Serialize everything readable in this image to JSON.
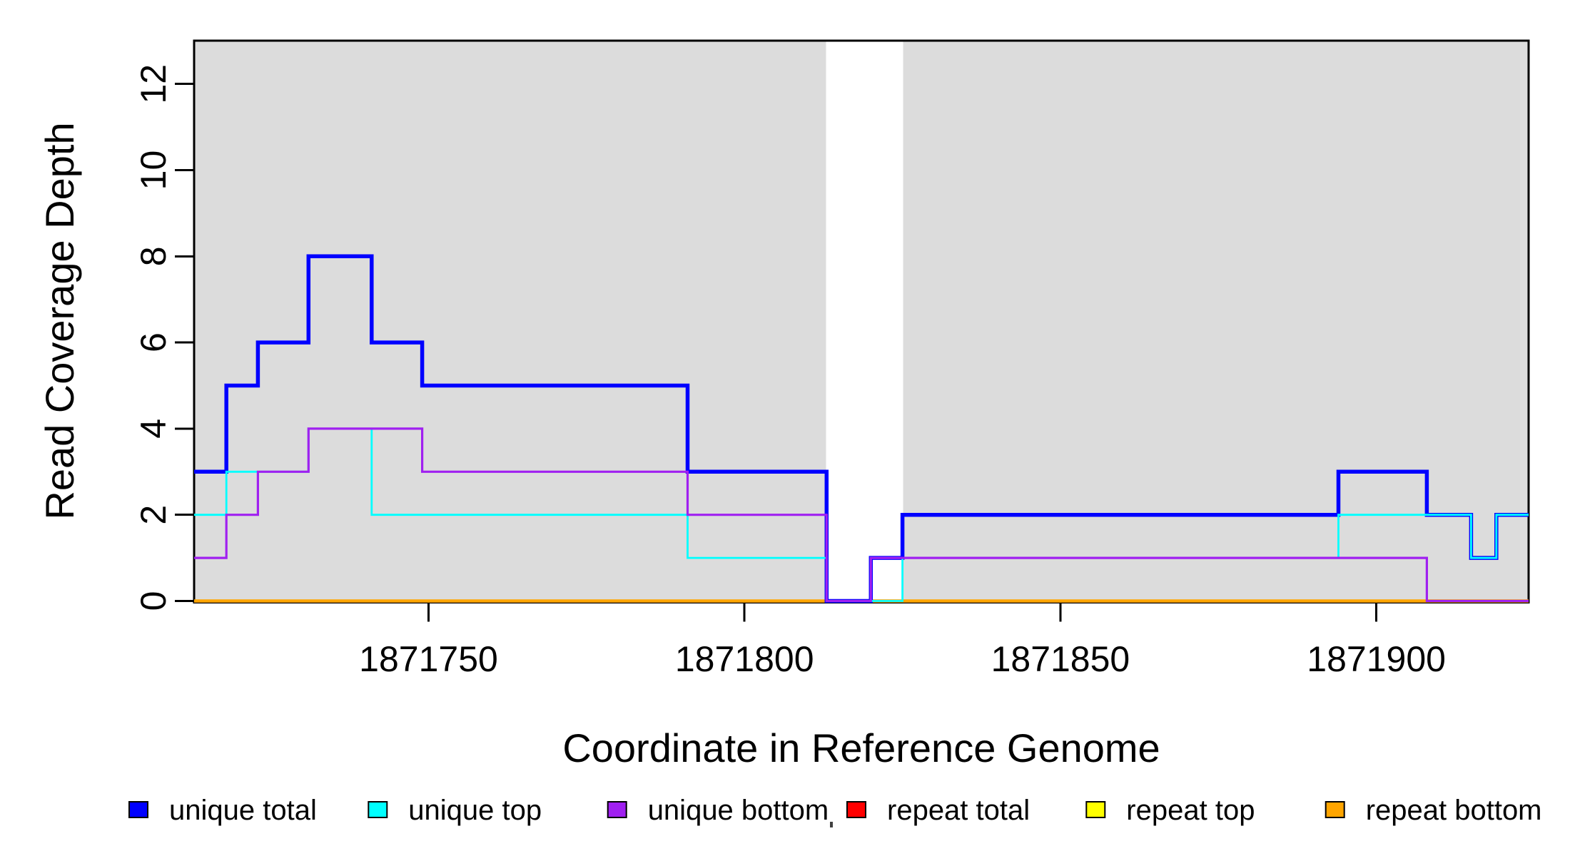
{
  "chart_data": {
    "type": "line",
    "subtype": "step-coverage",
    "title": "",
    "xlabel": "Coordinate in Reference Genome",
    "ylabel": "Read Coverage Depth",
    "xlim": [
      1871712.9,
      1871924.1
    ],
    "ylim": [
      0,
      13
    ],
    "x_ticks": [
      1871750,
      1871800,
      1871850,
      1871900
    ],
    "y_ticks": [
      0,
      2,
      4,
      6,
      8,
      10,
      12
    ],
    "grid": false,
    "background_bands": [
      {
        "name": "covered-region-left",
        "from": 1871712.9,
        "to": 1871812.9,
        "color": "#DCDCDC"
      },
      {
        "name": "covered-region-right",
        "from": 1871825.1,
        "to": 1871924.1,
        "color": "#DCDCDC"
      }
    ],
    "series": [
      {
        "name": "repeat total",
        "color": "#FF0000",
        "width": 3,
        "breakpoints": [
          [
            1871712.9,
            0
          ]
        ]
      },
      {
        "name": "repeat top",
        "color": "#FFFF00",
        "width": 3,
        "breakpoints": [
          [
            1871712.9,
            0
          ]
        ]
      },
      {
        "name": "repeat bottom",
        "color": "#FFA500",
        "width": 4.5,
        "breakpoints": [
          [
            1871712.9,
            0
          ]
        ]
      },
      {
        "name": "unique total",
        "color": "#0000FF",
        "width": 5.5,
        "breakpoints": [
          [
            1871712.9,
            3
          ],
          [
            1871718,
            5
          ],
          [
            1871723,
            6
          ],
          [
            1871731,
            8
          ],
          [
            1871741,
            6
          ],
          [
            1871749,
            5
          ],
          [
            1871791,
            3
          ],
          [
            1871813,
            0
          ],
          [
            1871820,
            1
          ],
          [
            1871825,
            2
          ],
          [
            1871894,
            3
          ],
          [
            1871908,
            2
          ],
          [
            1871915,
            1
          ],
          [
            1871919,
            2
          ]
        ]
      },
      {
        "name": "unique top",
        "color": "#00FFFF",
        "width": 2.8,
        "breakpoints": [
          [
            1871712.9,
            2
          ],
          [
            1871718,
            3
          ],
          [
            1871731,
            4
          ],
          [
            1871741,
            2
          ],
          [
            1871791,
            1
          ],
          [
            1871813,
            0
          ],
          [
            1871825,
            1
          ],
          [
            1871894,
            2
          ],
          [
            1871915,
            1
          ],
          [
            1871919,
            2
          ]
        ]
      },
      {
        "name": "unique bottom",
        "color": "#A020F0",
        "width": 3.2,
        "breakpoints": [
          [
            1871712.9,
            1
          ],
          [
            1871718,
            2
          ],
          [
            1871723,
            3
          ],
          [
            1871731,
            4
          ],
          [
            1871749,
            3
          ],
          [
            1871791,
            2
          ],
          [
            1871813,
            0
          ],
          [
            1871820,
            1
          ],
          [
            1871908,
            0
          ]
        ]
      }
    ]
  },
  "axes": {
    "x_label": "Coordinate in Reference Genome",
    "y_label": "Read Coverage Depth",
    "x_tick_labels": [
      "1871750",
      "1871800",
      "1871850",
      "1871900"
    ],
    "y_tick_labels": [
      "0",
      "2",
      "4",
      "6",
      "8",
      "10",
      "12"
    ]
  },
  "legend": {
    "items": [
      {
        "label": "unique total",
        "color": "#0000FF"
      },
      {
        "label": "unique top",
        "color": "#00FFFF"
      },
      {
        "label": "unique bottom",
        "color": "#A020F0"
      },
      {
        "label": "repeat total",
        "color": "#FF0000"
      },
      {
        "label": "repeat top",
        "color": "#FFFF00"
      },
      {
        "label": "repeat bottom",
        "color": "#FFA500"
      }
    ]
  },
  "colors": {
    "background": "#FFFFFF",
    "band": "#DCDCDC",
    "axis": "#000000"
  }
}
